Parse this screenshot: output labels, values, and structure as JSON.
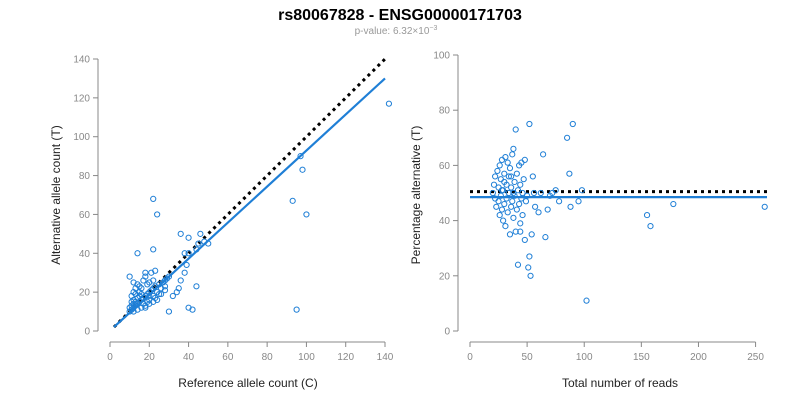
{
  "header": {
    "title": "rs80067828 - ENSG00000171703",
    "pvalue_prefix": "p-value: 6.32×10",
    "pvalue_exponent": "−3"
  },
  "chart_data": [
    {
      "type": "scatter",
      "xlabel": "Reference allele count (C)",
      "ylabel": "Alternative allele count (T)",
      "xlim": [
        0,
        140
      ],
      "ylim": [
        0,
        140
      ],
      "xticks": [
        0,
        20,
        40,
        60,
        80,
        100,
        120,
        140
      ],
      "yticks": [
        0,
        20,
        40,
        60,
        80,
        100,
        120,
        140
      ],
      "grid": false,
      "point_color": "#1f7fd6",
      "fit_line": {
        "color": "#1f7fd6",
        "style": "solid",
        "from": [
          2,
          2
        ],
        "to": [
          140,
          130
        ]
      },
      "reference_line": {
        "color": "#000000",
        "style": "dotted",
        "from": [
          2,
          2
        ],
        "to": [
          140,
          140
        ]
      },
      "points": [
        [
          10,
          10
        ],
        [
          10,
          12
        ],
        [
          11,
          11
        ],
        [
          11,
          13
        ],
        [
          12,
          12
        ],
        [
          12,
          14
        ],
        [
          12,
          16
        ],
        [
          13,
          13
        ],
        [
          13,
          15
        ],
        [
          14,
          14
        ],
        [
          14,
          17
        ],
        [
          15,
          15
        ],
        [
          15,
          18
        ],
        [
          16,
          16
        ],
        [
          16,
          12
        ],
        [
          17,
          17
        ],
        [
          17,
          14
        ],
        [
          18,
          18
        ],
        [
          18,
          13
        ],
        [
          19,
          19
        ],
        [
          19,
          15
        ],
        [
          20,
          20
        ],
        [
          20,
          16
        ],
        [
          21,
          21
        ],
        [
          22,
          22
        ],
        [
          22,
          18
        ],
        [
          23,
          23
        ],
        [
          23,
          17
        ],
        [
          24,
          20
        ],
        [
          25,
          24
        ],
        [
          25,
          19
        ],
        [
          26,
          22
        ],
        [
          27,
          25
        ],
        [
          28,
          26
        ],
        [
          29,
          27
        ],
        [
          30,
          28
        ],
        [
          11,
          18
        ],
        [
          12,
          20
        ],
        [
          13,
          22
        ],
        [
          14,
          24
        ],
        [
          15,
          20
        ],
        [
          16,
          22
        ],
        [
          17,
          26
        ],
        [
          18,
          28
        ],
        [
          19,
          24
        ],
        [
          20,
          25
        ],
        [
          21,
          30
        ],
        [
          22,
          26
        ],
        [
          10,
          28
        ],
        [
          12,
          25
        ],
        [
          14,
          40
        ],
        [
          18,
          30
        ],
        [
          20,
          18
        ],
        [
          22,
          68
        ],
        [
          24,
          60
        ],
        [
          22,
          42
        ],
        [
          23,
          31
        ],
        [
          28,
          23
        ],
        [
          30,
          10
        ],
        [
          32,
          18
        ],
        [
          34,
          20
        ],
        [
          35,
          22
        ],
        [
          36,
          50
        ],
        [
          38,
          30
        ],
        [
          38,
          40
        ],
        [
          39,
          34
        ],
        [
          40,
          40
        ],
        [
          40,
          12
        ],
        [
          42,
          11
        ],
        [
          44,
          42
        ],
        [
          45,
          45
        ],
        [
          46,
          50
        ],
        [
          48,
          46
        ],
        [
          50,
          45
        ],
        [
          40,
          48
        ],
        [
          36,
          26
        ],
        [
          44,
          23
        ],
        [
          93,
          67
        ],
        [
          95,
          11
        ],
        [
          97,
          90
        ],
        [
          98,
          83
        ],
        [
          100,
          60
        ],
        [
          142,
          117
        ],
        [
          12,
          10
        ],
        [
          14,
          11
        ],
        [
          16,
          19
        ],
        [
          18,
          12
        ],
        [
          20,
          14
        ],
        [
          22,
          15
        ],
        [
          24,
          16
        ],
        [
          26,
          19
        ],
        [
          28,
          21
        ],
        [
          11,
          15
        ],
        [
          13,
          19
        ],
        [
          15,
          23
        ]
      ]
    },
    {
      "type": "scatter",
      "xlabel": "Total number of reads",
      "ylabel": "Percentage alternative (T)",
      "xlim": [
        0,
        260
      ],
      "ylim": [
        0,
        100
      ],
      "xticks": [
        0,
        50,
        100,
        150,
        200,
        250
      ],
      "yticks": [
        0,
        20,
        40,
        60,
        80,
        100
      ],
      "grid": false,
      "point_color": "#1f7fd6",
      "fit_line": {
        "color": "#1f7fd6",
        "style": "solid",
        "from": [
          0,
          48.5
        ],
        "to": [
          260,
          48.5
        ]
      },
      "reference_line": {
        "color": "#000000",
        "style": "dotted",
        "from": [
          0,
          50.5
        ],
        "to": [
          260,
          50.5
        ]
      },
      "points": [
        [
          20,
          50
        ],
        [
          21,
          53
        ],
        [
          22,
          48
        ],
        [
          22,
          56
        ],
        [
          23,
          45
        ],
        [
          24,
          58
        ],
        [
          25,
          47
        ],
        [
          25,
          52
        ],
        [
          26,
          60
        ],
        [
          26,
          42
        ],
        [
          27,
          55
        ],
        [
          27,
          49
        ],
        [
          28,
          62
        ],
        [
          28,
          44
        ],
        [
          29,
          51
        ],
        [
          29,
          40
        ],
        [
          30,
          57
        ],
        [
          30,
          46
        ],
        [
          31,
          63
        ],
        [
          31,
          38
        ],
        [
          32,
          53
        ],
        [
          32,
          48
        ],
        [
          33,
          61
        ],
        [
          33,
          43
        ],
        [
          34,
          56
        ],
        [
          34,
          50
        ],
        [
          35,
          59
        ],
        [
          35,
          35
        ],
        [
          36,
          45
        ],
        [
          36,
          52
        ],
        [
          37,
          64
        ],
        [
          37,
          47
        ],
        [
          38,
          66
        ],
        [
          38,
          41
        ],
        [
          39,
          54
        ],
        [
          39,
          49
        ],
        [
          40,
          73
        ],
        [
          40,
          36
        ],
        [
          41,
          57
        ],
        [
          41,
          44
        ],
        [
          42,
          24
        ],
        [
          42,
          51
        ],
        [
          43,
          46
        ],
        [
          43,
          60
        ],
        [
          44,
          39
        ],
        [
          44,
          53
        ],
        [
          45,
          61
        ],
        [
          45,
          48
        ],
        [
          46,
          42
        ],
        [
          46,
          50
        ],
        [
          47,
          55
        ],
        [
          48,
          62
        ],
        [
          48,
          33
        ],
        [
          49,
          47
        ],
        [
          50,
          49
        ],
        [
          51,
          23
        ],
        [
          52,
          27
        ],
        [
          52,
          75
        ],
        [
          53,
          20
        ],
        [
          54,
          35
        ],
        [
          55,
          56
        ],
        [
          56,
          50
        ],
        [
          57,
          45
        ],
        [
          60,
          43
        ],
        [
          62,
          50
        ],
        [
          64,
          64
        ],
        [
          66,
          34
        ],
        [
          68,
          44
        ],
        [
          70,
          49
        ],
        [
          72,
          50
        ],
        [
          75,
          51
        ],
        [
          78,
          47
        ],
        [
          85,
          70
        ],
        [
          87,
          57
        ],
        [
          88,
          45
        ],
        [
          90,
          75
        ],
        [
          95,
          47
        ],
        [
          98,
          51
        ],
        [
          102,
          11
        ],
        [
          155,
          42
        ],
        [
          158,
          38
        ],
        [
          178,
          46
        ],
        [
          258,
          45
        ],
        [
          44,
          36
        ],
        [
          38,
          50
        ],
        [
          36,
          56
        ],
        [
          30,
          54
        ],
        [
          28,
          51
        ]
      ]
    }
  ]
}
